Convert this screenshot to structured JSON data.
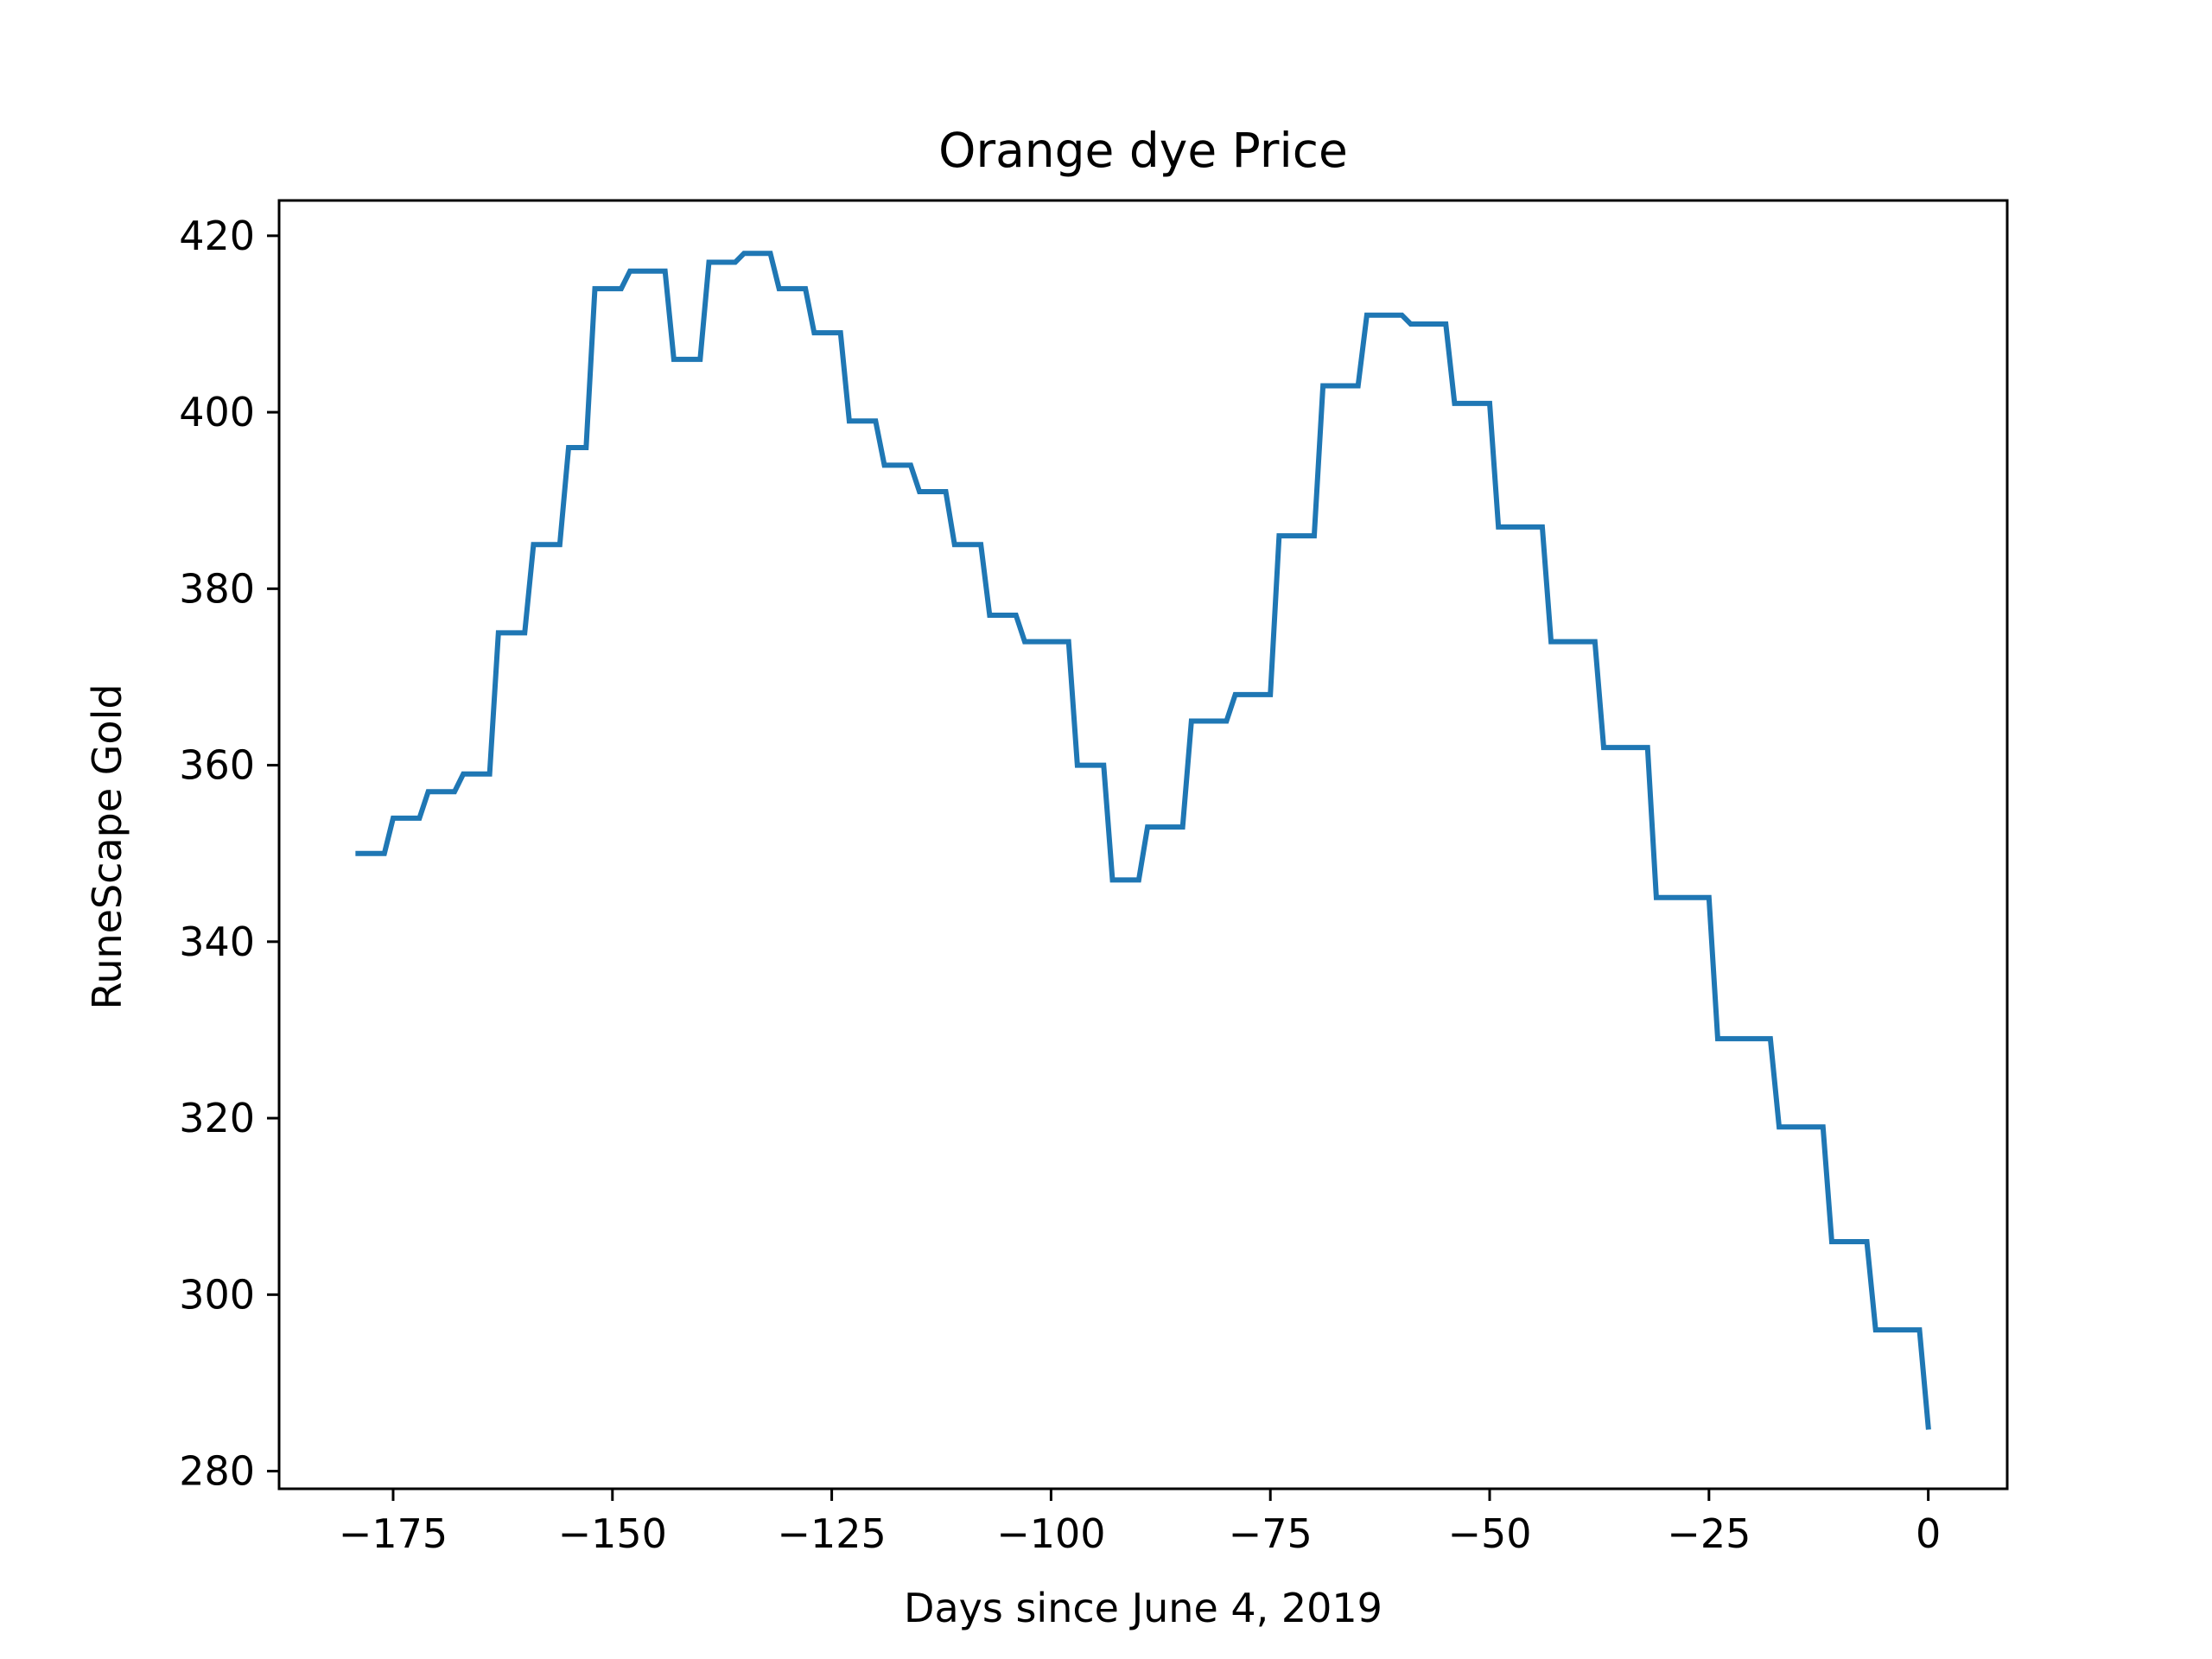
{
  "chart_data": {
    "type": "line",
    "title": "Orange dye Price",
    "xlabel": "Days since June 4, 2019",
    "ylabel": "RuneScape Gold",
    "xlim": [
      -188,
      9
    ],
    "ylim": [
      278,
      424
    ],
    "grid": false,
    "line_color": "#1f77b4",
    "x_ticks": [
      -175,
      -150,
      -125,
      -100,
      -75,
      -50,
      -25,
      0
    ],
    "x_tick_labels": [
      "−175",
      "−150",
      "−125",
      "−100",
      "−75",
      "−50",
      "−25",
      "0"
    ],
    "y_ticks": [
      280,
      300,
      320,
      340,
      360,
      380,
      400,
      420
    ],
    "y_tick_labels": [
      "280",
      "300",
      "320",
      "340",
      "360",
      "380",
      "400",
      "420"
    ],
    "series": [
      {
        "x": [
          -179,
          -176,
          -175,
          -172,
          -171,
          -168,
          -167,
          -164,
          -163,
          -160,
          -159,
          -156,
          -155,
          -153,
          -152,
          -149,
          -148,
          -144,
          -143,
          -140,
          -139,
          -136,
          -135,
          -132,
          -131,
          -128,
          -127,
          -124,
          -123,
          -120,
          -119,
          -116,
          -115,
          -112,
          -111,
          -108,
          -107,
          -104,
          -103,
          -98,
          -97,
          -94,
          -93,
          -90,
          -89,
          -85,
          -84,
          -80,
          -79,
          -75,
          -74,
          -70,
          -69,
          -65,
          -64,
          -60,
          -59,
          -55,
          -54,
          -50,
          -49,
          -44,
          -43,
          -38,
          -37,
          -32,
          -31,
          -25,
          -24,
          -18,
          -17,
          -12,
          -11,
          -7,
          -6,
          -1,
          0
        ],
        "y": [
          350,
          350,
          354,
          354,
          357,
          357,
          359,
          359,
          375,
          375,
          385,
          385,
          396,
          396,
          414,
          414,
          416,
          416,
          406,
          406,
          417,
          417,
          418,
          418,
          414,
          414,
          409,
          409,
          399,
          399,
          394,
          394,
          391,
          391,
          385,
          385,
          377,
          377,
          374,
          374,
          360,
          360,
          347,
          347,
          353,
          353,
          365,
          365,
          368,
          368,
          386,
          386,
          403,
          403,
          411,
          411,
          410,
          410,
          401,
          401,
          387,
          387,
          374,
          374,
          362,
          362,
          345,
          345,
          329,
          329,
          319,
          319,
          306,
          306,
          296,
          296,
          285
        ]
      }
    ]
  }
}
